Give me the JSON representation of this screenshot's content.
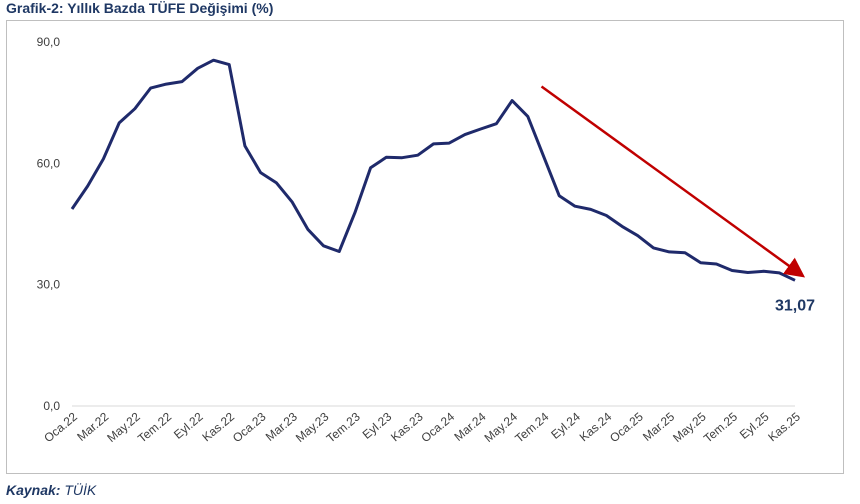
{
  "title": "Grafik-2: Yıllık Bazda TÜFE Değişimi (%)",
  "source": {
    "label": "Kaynak:",
    "text": "TÜİK"
  },
  "colors": {
    "line": "#1f2a6b",
    "arrow": "#c00000",
    "text": "#1f3864",
    "axis": "#d9d9d9"
  },
  "chart_data": {
    "type": "line",
    "title": "Grafik-2: Yıllık Bazda TÜFE Değişimi (%)",
    "xlabel": "",
    "ylabel": "",
    "ylim": [
      0,
      90
    ],
    "yticks": [
      "0,0",
      "30,0",
      "60,0",
      "90,0"
    ],
    "ytick_values": [
      0,
      30,
      60,
      90
    ],
    "grid": false,
    "x_tick_labels": [
      "Oca.22",
      "Mar.22",
      "May.22",
      "Tem.22",
      "Eyl.22",
      "Kas.22",
      "Oca.23",
      "Mar.23",
      "May.23",
      "Tem.23",
      "Eyl.23",
      "Kas.23",
      "Oca.24",
      "Mar.24",
      "May.24",
      "Tem.24",
      "Eyl.24",
      "Kas.24",
      "Oca.25",
      "Mar.25",
      "May.25",
      "Tem.25",
      "Eyl.25",
      "Kas.25"
    ],
    "series": [
      {
        "values": [
          48.7,
          54.4,
          61.1,
          70.0,
          73.5,
          78.6,
          79.6,
          80.2,
          83.5,
          85.5,
          84.4,
          64.3,
          57.7,
          55.2,
          50.5,
          43.7,
          39.6,
          38.2,
          47.8,
          58.9,
          61.5,
          61.4,
          62.0,
          64.8,
          65.0,
          67.1,
          68.5,
          69.8,
          75.5,
          71.6,
          61.8,
          52.0,
          49.4,
          48.6,
          47.1,
          44.4,
          42.1,
          39.1,
          38.1,
          37.9,
          35.4,
          35.1,
          33.5,
          33.0,
          33.3,
          32.9,
          31.07
        ]
      }
    ],
    "annotations": [
      {
        "type": "label",
        "text": "31,07",
        "x": "Kas.25",
        "y": 31.07
      },
      {
        "type": "arrow",
        "from": {
          "x": "Tem.24",
          "y": 79.0
        },
        "to": {
          "x": "Kas.25",
          "y": 32.5
        }
      }
    ]
  }
}
